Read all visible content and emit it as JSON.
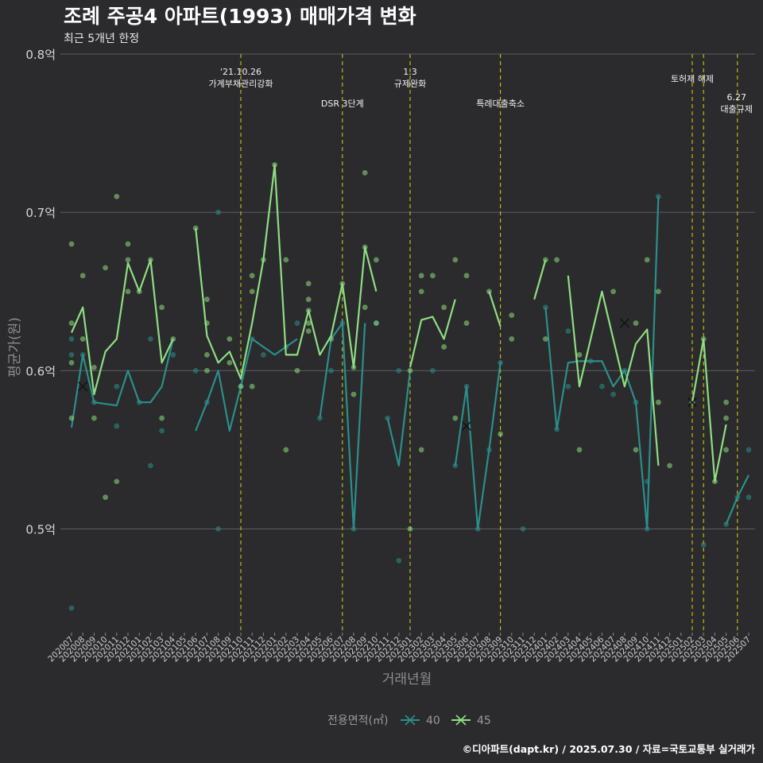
{
  "chart_data": {
    "type": "line",
    "title": "조례 주공4 아파트(1993) 매매가격 변화",
    "subtitle": "최근 5개년 한정",
    "xlabel": "거래년월",
    "ylabel": "평균가(원)",
    "ylim": [
      0.435,
      0.805
    ],
    "yticks": [
      0.5,
      0.6,
      0.7,
      0.8
    ],
    "ytick_labels": [
      "0.5억",
      "0.6억",
      "0.7억",
      "0.8억"
    ],
    "grid": "horizontal",
    "legend": {
      "title": "전용면적(㎡)",
      "placement": "bottom"
    },
    "caption": "©디아파트(dapt.kr) / 2025.07.30 / 자료=국토교통부 실거래가",
    "categories": [
      "202007",
      "202008",
      "202009",
      "202010",
      "202011",
      "202012",
      "202101",
      "202102",
      "202103",
      "202104",
      "202105",
      "202106",
      "202107",
      "202108",
      "202109",
      "202110",
      "202111",
      "202112",
      "202201",
      "202202",
      "202203",
      "202204",
      "202205",
      "202206",
      "202207",
      "202208",
      "202209",
      "202210",
      "202211",
      "202212",
      "202301",
      "202302",
      "202303",
      "202304",
      "202305",
      "202306",
      "202307",
      "202308",
      "202309",
      "202310",
      "202311",
      "202312",
      "202401",
      "202402",
      "202403",
      "202404",
      "202405",
      "202406",
      "202407",
      "202408",
      "202409",
      "202410",
      "202411",
      "202412",
      "202501",
      "202502",
      "202503",
      "202504",
      "202505",
      "202506",
      "202507"
    ],
    "series": [
      {
        "name": "40",
        "color": "#2a8f8c",
        "values": [
          0.564,
          0.61,
          0.58,
          0.579,
          0.578,
          0.6,
          0.58,
          0.58,
          0.59,
          0.62,
          null,
          0.562,
          0.58,
          0.6,
          0.562,
          0.59,
          0.62,
          0.615,
          0.61,
          0.615,
          0.62,
          null,
          0.57,
          0.62,
          0.63,
          0.5,
          0.63,
          null,
          0.57,
          0.54,
          0.6,
          null,
          null,
          null,
          0.54,
          0.59,
          0.5,
          0.55,
          0.605,
          null,
          0.5,
          null,
          0.64,
          0.563,
          0.605,
          0.606,
          0.606,
          0.606,
          0.59,
          0.6,
          0.58,
          0.5,
          0.71,
          null,
          null,
          null,
          0.49,
          null,
          0.503,
          0.52,
          0.534
        ],
        "points": [
          [
            0,
            0.62
          ],
          [
            0,
            0.61
          ],
          [
            0,
            0.45
          ],
          [
            1,
            0.61
          ],
          [
            2,
            0.58
          ],
          [
            4,
            0.565
          ],
          [
            4,
            0.59
          ],
          [
            6,
            0.58
          ],
          [
            7,
            0.62
          ],
          [
            7,
            0.54
          ],
          [
            9,
            0.61
          ],
          [
            8,
            0.562
          ],
          [
            11,
            0.6
          ],
          [
            12,
            0.58
          ],
          [
            13,
            0.5
          ],
          [
            13,
            0.7
          ],
          [
            15,
            0.59
          ],
          [
            16,
            0.62
          ],
          [
            17,
            0.61
          ],
          [
            19,
            0.615
          ],
          [
            20,
            0.63
          ],
          [
            22,
            0.57
          ],
          [
            23,
            0.6
          ],
          [
            24,
            0.63
          ],
          [
            25,
            0.5
          ],
          [
            27,
            0.63
          ],
          [
            28,
            0.57
          ],
          [
            29,
            0.6
          ],
          [
            29,
            0.48
          ],
          [
            32,
            0.6
          ],
          [
            34,
            0.54
          ],
          [
            35,
            0.59
          ],
          [
            36,
            0.5
          ],
          [
            37,
            0.55
          ],
          [
            38,
            0.605
          ],
          [
            40,
            0.5
          ],
          [
            42,
            0.64
          ],
          [
            43,
            0.563
          ],
          [
            44,
            0.59
          ],
          [
            44,
            0.625
          ],
          [
            46,
            0.606
          ],
          [
            47,
            0.59
          ],
          [
            48,
            0.585
          ],
          [
            49,
            0.6
          ],
          [
            50,
            0.58
          ],
          [
            51,
            0.5
          ],
          [
            51,
            0.53
          ],
          [
            52,
            0.71
          ],
          [
            56,
            0.49
          ],
          [
            58,
            0.503
          ],
          [
            59,
            0.52
          ],
          [
            60,
            0.55
          ],
          [
            60,
            0.52
          ]
        ],
        "cross_points": [
          [
            1,
            0.59
          ],
          [
            35,
            0.565
          ]
        ]
      },
      {
        "name": "45",
        "color": "#8ede82",
        "values": [
          0.624,
          0.64,
          0.585,
          0.612,
          0.62,
          0.668,
          0.65,
          0.67,
          0.605,
          0.62,
          null,
          0.69,
          0.622,
          0.605,
          0.612,
          0.595,
          0.63,
          0.67,
          0.73,
          0.61,
          0.61,
          0.638,
          0.61,
          0.622,
          0.655,
          0.602,
          0.678,
          0.65,
          null,
          null,
          0.602,
          0.632,
          0.634,
          0.62,
          0.645,
          null,
          null,
          0.65,
          0.628,
          null,
          null,
          0.645,
          0.67,
          null,
          0.66,
          0.59,
          0.62,
          0.65,
          0.62,
          0.59,
          0.617,
          0.626,
          0.54,
          null,
          null,
          0.58,
          0.62,
          0.53,
          0.566,
          null,
          null
        ],
        "points": [
          [
            0,
            0.68
          ],
          [
            0,
            0.63
          ],
          [
            0,
            0.605
          ],
          [
            0,
            0.57
          ],
          [
            1,
            0.66
          ],
          [
            1,
            0.62
          ],
          [
            2,
            0.602
          ],
          [
            2,
            0.57
          ],
          [
            3,
            0.665
          ],
          [
            3,
            0.52
          ],
          [
            4,
            0.71
          ],
          [
            4,
            0.53
          ],
          [
            5,
            0.68
          ],
          [
            5,
            0.67
          ],
          [
            5,
            0.65
          ],
          [
            6,
            0.65
          ],
          [
            7,
            0.67
          ],
          [
            8,
            0.64
          ],
          [
            8,
            0.57
          ],
          [
            9,
            0.62
          ],
          [
            11,
            0.69
          ],
          [
            12,
            0.645
          ],
          [
            12,
            0.63
          ],
          [
            12,
            0.61
          ],
          [
            12,
            0.6
          ],
          [
            14,
            0.605
          ],
          [
            14,
            0.62
          ],
          [
            15,
            0.59
          ],
          [
            16,
            0.66
          ],
          [
            16,
            0.65
          ],
          [
            16,
            0.59
          ],
          [
            17,
            0.67
          ],
          [
            18,
            0.73
          ],
          [
            19,
            0.67
          ],
          [
            19,
            0.55
          ],
          [
            20,
            0.6
          ],
          [
            21,
            0.655
          ],
          [
            21,
            0.645
          ],
          [
            21,
            0.638
          ],
          [
            21,
            0.63
          ],
          [
            21,
            0.625
          ],
          [
            23,
            0.62
          ],
          [
            24,
            0.655
          ],
          [
            25,
            0.602
          ],
          [
            25,
            0.585
          ],
          [
            26,
            0.725
          ],
          [
            26,
            0.678
          ],
          [
            26,
            0.64
          ],
          [
            27,
            0.63
          ],
          [
            27,
            0.67
          ],
          [
            30,
            0.6
          ],
          [
            30,
            0.5
          ],
          [
            31,
            0.66
          ],
          [
            31,
            0.65
          ],
          [
            31,
            0.55
          ],
          [
            32,
            0.66
          ],
          [
            33,
            0.64
          ],
          [
            33,
            0.615
          ],
          [
            34,
            0.67
          ],
          [
            34,
            0.57
          ],
          [
            35,
            0.66
          ],
          [
            35,
            0.63
          ],
          [
            37,
            0.65
          ],
          [
            38,
            0.56
          ],
          [
            39,
            0.635
          ],
          [
            39,
            0.62
          ],
          [
            42,
            0.67
          ],
          [
            42,
            0.62
          ],
          [
            43,
            0.67
          ],
          [
            45,
            0.61
          ],
          [
            45,
            0.55
          ],
          [
            48,
            0.65
          ],
          [
            50,
            0.63
          ],
          [
            50,
            0.55
          ],
          [
            51,
            0.67
          ],
          [
            52,
            0.65
          ],
          [
            52,
            0.58
          ],
          [
            53,
            0.54
          ],
          [
            55,
            0.58
          ],
          [
            56,
            0.62
          ],
          [
            57,
            0.53
          ],
          [
            58,
            0.58
          ],
          [
            58,
            0.57
          ],
          [
            58,
            0.55
          ]
        ],
        "cross_points": [
          [
            49,
            0.63
          ],
          [
            55,
            0.58
          ]
        ]
      }
    ],
    "events": [
      {
        "x": 15.0,
        "lines": [
          "'21.10.26",
          "가계부채관리강화"
        ],
        "row": "top"
      },
      {
        "x": 24.0,
        "lines": [
          "DSR 3단계"
        ],
        "row": "low"
      },
      {
        "x": 30.0,
        "lines": [
          "1.3",
          "규제완화"
        ],
        "row": "top"
      },
      {
        "x": 38.0,
        "lines": [
          "특례대출축소"
        ],
        "row": "low"
      },
      {
        "x": 55.0,
        "lines": [
          "토허제 해제"
        ],
        "row": "mid"
      },
      {
        "x": 56.0,
        "lines": [],
        "row": "none"
      },
      {
        "x": 59.0,
        "lines": [
          "6.27",
          "대출규제"
        ],
        "row": "side"
      }
    ]
  }
}
